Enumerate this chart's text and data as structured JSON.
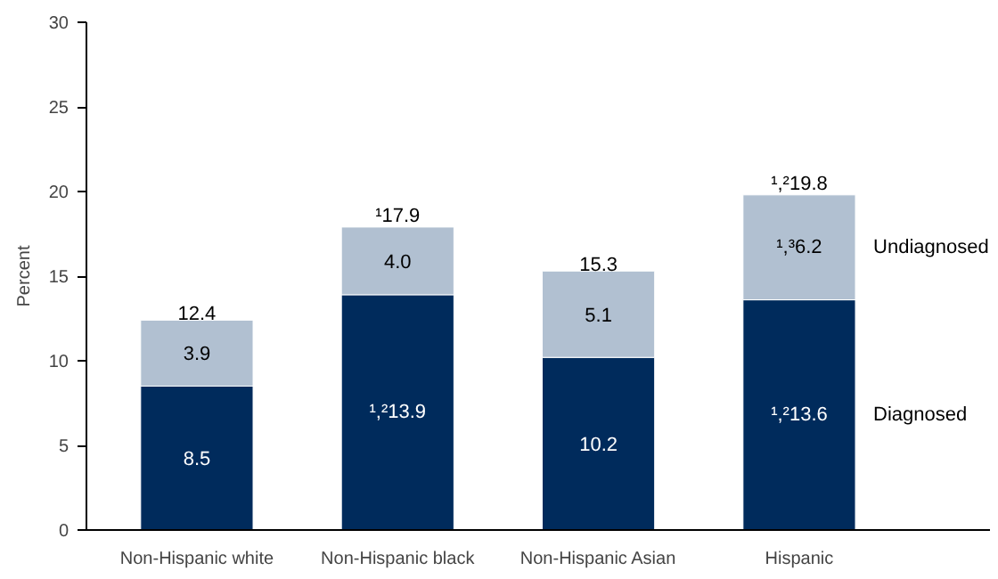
{
  "chart_data": {
    "type": "bar",
    "stacked": true,
    "ylabel": "Percent",
    "categories": [
      "Non-Hispanic white",
      "Non-Hispanic black",
      "Non-Hispanic Asian",
      "Hispanic"
    ],
    "series": [
      {
        "name": "Diagnosed",
        "color": "#002b5c",
        "values": [
          8.5,
          13.9,
          10.2,
          13.6
        ],
        "value_labels": [
          "8.5",
          "¹,²13.9",
          "10.2",
          "¹,²13.6"
        ]
      },
      {
        "name": "Undiagnosed",
        "color": "#b1c0d1",
        "values": [
          3.9,
          4.0,
          5.1,
          6.2
        ],
        "value_labels": [
          "3.9",
          "4.0",
          "5.1",
          "¹,³6.2"
        ]
      }
    ],
    "totals": [
      "12.4",
      "¹17.9",
      "15.3",
      "¹,²19.8"
    ],
    "ylim": [
      0,
      30
    ],
    "yticks": [
      0,
      5,
      10,
      15,
      20,
      25,
      30
    ],
    "grid": false,
    "legend": false
  }
}
